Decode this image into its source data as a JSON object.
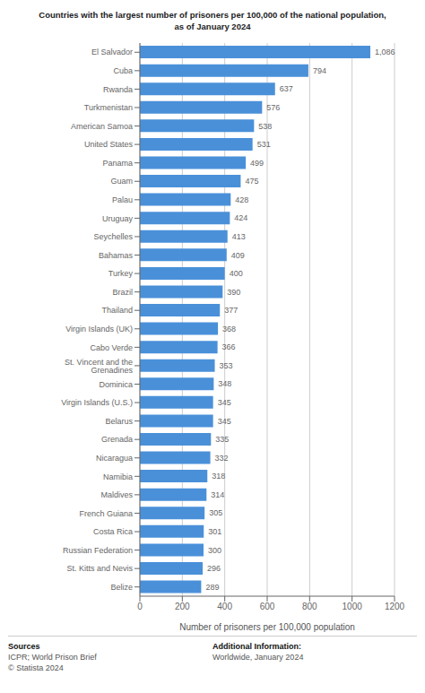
{
  "chart_data": {
    "type": "bar",
    "orientation": "horizontal",
    "title": "Countries with the largest number of prisoners per 100,000 of the national population,\nas of January 2024",
    "categories": [
      "El Salvador",
      "Cuba",
      "Rwanda",
      "Turkmenistan",
      "American Samoa",
      "United States",
      "Panama",
      "Guam",
      "Palau",
      "Uruguay",
      "Seychelles",
      "Bahamas",
      "Turkey",
      "Brazil",
      "Thailand",
      "Virgin Islands (UK)",
      "Cabo Verde",
      "St. Vincent and the Grenadines",
      "Dominica",
      "Virgin Islands (U.S.)",
      "Belarus",
      "Grenada",
      "Nicaragua",
      "Namibia",
      "Maldives",
      "French Guiana",
      "Costa Rica",
      "Russian Federation",
      "St. Kitts and Nevis",
      "Belize"
    ],
    "values": [
      1086,
      794,
      637,
      576,
      538,
      531,
      499,
      475,
      428,
      424,
      413,
      409,
      400,
      390,
      377,
      368,
      366,
      353,
      348,
      345,
      345,
      335,
      332,
      318,
      314,
      305,
      301,
      300,
      296,
      289
    ],
    "value_labels": [
      "1,086",
      "794",
      "637",
      "576",
      "538",
      "531",
      "499",
      "475",
      "428",
      "424",
      "413",
      "409",
      "400",
      "390",
      "377",
      "368",
      "366",
      "353",
      "348",
      "345",
      "345",
      "335",
      "332",
      "318",
      "314",
      "305",
      "301",
      "300",
      "296",
      "289"
    ],
    "data_labels": true,
    "color": "#4a90d9",
    "xlabel": "Number of prisoners per 100,000 population",
    "xlim": [
      0,
      1200
    ],
    "xticks": [
      0,
      200,
      400,
      600,
      800,
      1000,
      1200
    ],
    "grid": true,
    "annotations": [
      "Sources",
      "ICPR; World Prison Brief\n© Statista 2024",
      "Additional Information:",
      "Worldwide, January 2024"
    ]
  }
}
